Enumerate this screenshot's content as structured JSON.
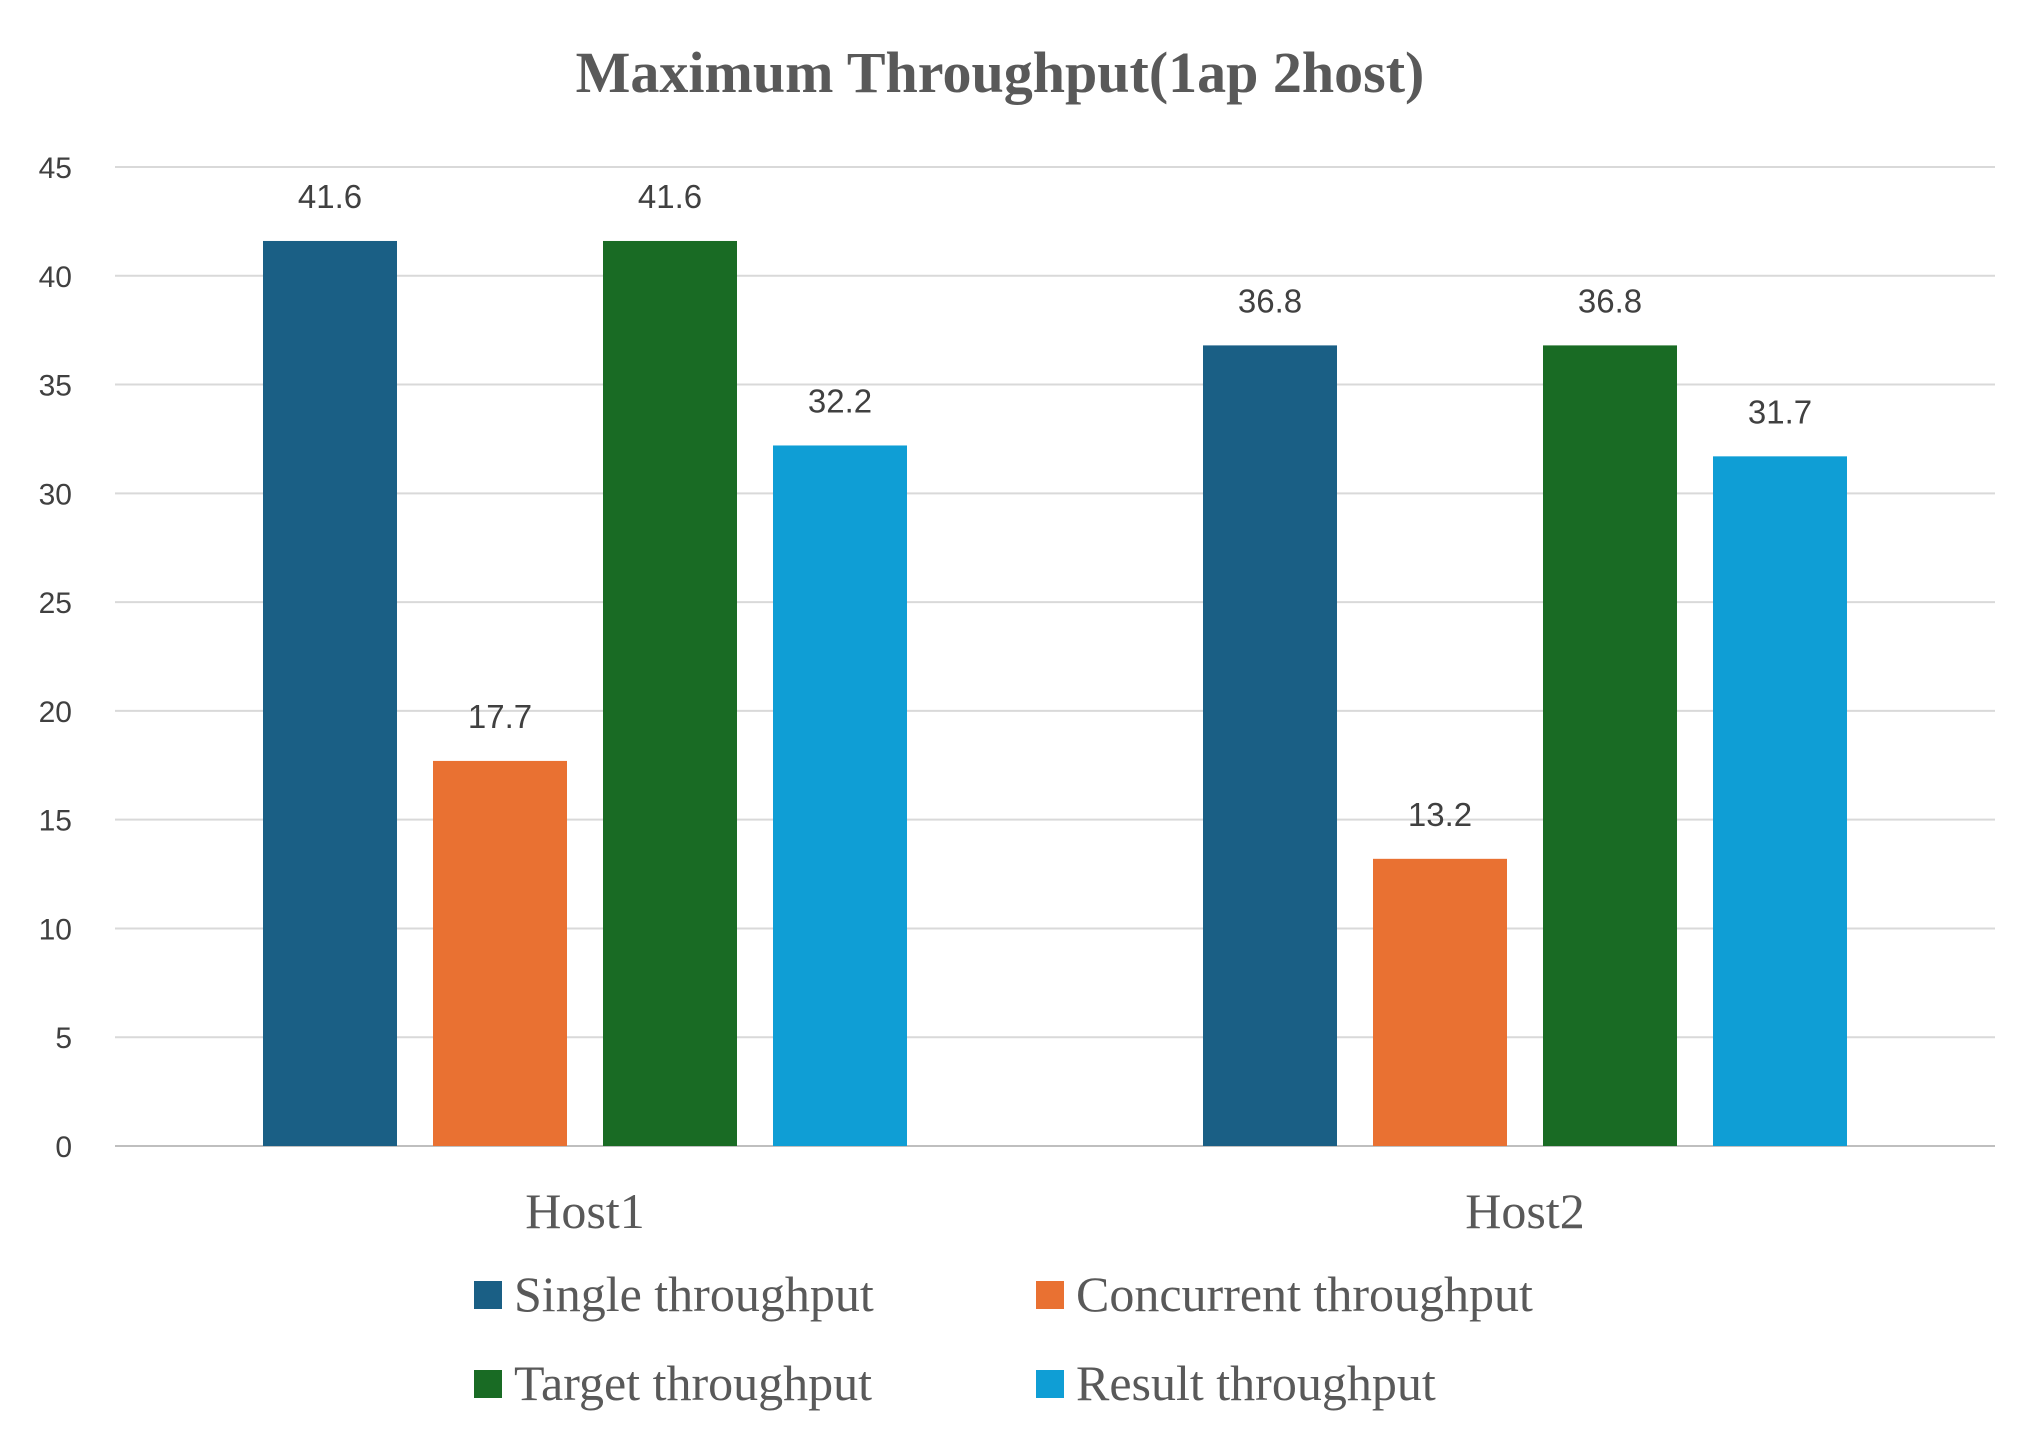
{
  "chart_data": {
    "type": "bar",
    "title": "Maximum Throughput(1ap 2host)",
    "xlabel": "",
    "ylabel": "",
    "categories": [
      "Host1",
      "Host2"
    ],
    "series": [
      {
        "name": "Single throughput",
        "color": "#1a5f85",
        "values": [
          41.6,
          36.8
        ]
      },
      {
        "name": "Concurrent throughput",
        "color": "#e97132",
        "values": [
          17.7,
          13.2
        ]
      },
      {
        "name": "Target throughput",
        "color": "#196b24",
        "values": [
          41.6,
          36.8
        ]
      },
      {
        "name": "Result throughput",
        "color": "#0f9ed5",
        "values": [
          32.2,
          31.7
        ]
      }
    ],
    "ylim": [
      0,
      45
    ],
    "yticks": [
      0,
      5,
      10,
      15,
      20,
      25,
      30,
      35,
      40,
      45
    ],
    "grid": true,
    "legend": "bottom",
    "data_labels": true
  }
}
